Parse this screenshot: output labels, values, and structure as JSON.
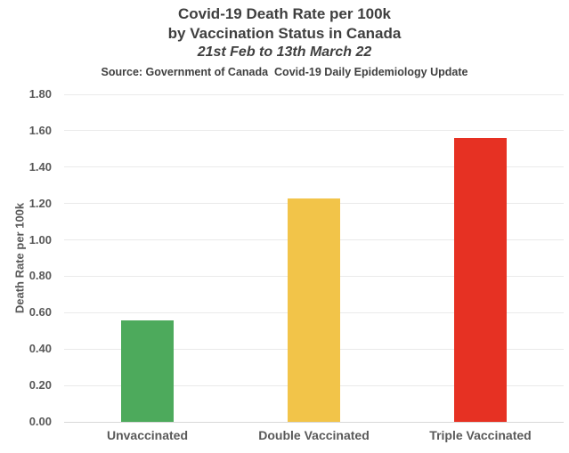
{
  "chart_data": {
    "type": "bar",
    "title_lines": [
      "Covid-19 Death Rate per 100k",
      "by Vaccination Status in Canada"
    ],
    "subtitle": "21st Feb to 13th March 22",
    "source_note": "Source: Government of Canada  Covid-19 Daily Epidemiology Update",
    "categories": [
      "Unvaccinated",
      "Double Vaccinated",
      "Triple Vaccinated"
    ],
    "values": [
      0.56,
      1.23,
      1.56
    ],
    "bar_colors": [
      "#4DAA5C",
      "#F2C449",
      "#E63123"
    ],
    "xlabel": "",
    "ylabel": "Death Rate per 100k",
    "ylim": [
      0,
      1.8
    ],
    "ytick_step": 0.2,
    "ytick_format_decimals": 2,
    "grid": true,
    "legend": false,
    "colors": {
      "title_text": "#3F3F3F",
      "axis_text": "#595959",
      "gridline": "#EAEAEA",
      "axis_line": "#D8D8D8",
      "background": "#FFFFFF"
    }
  }
}
